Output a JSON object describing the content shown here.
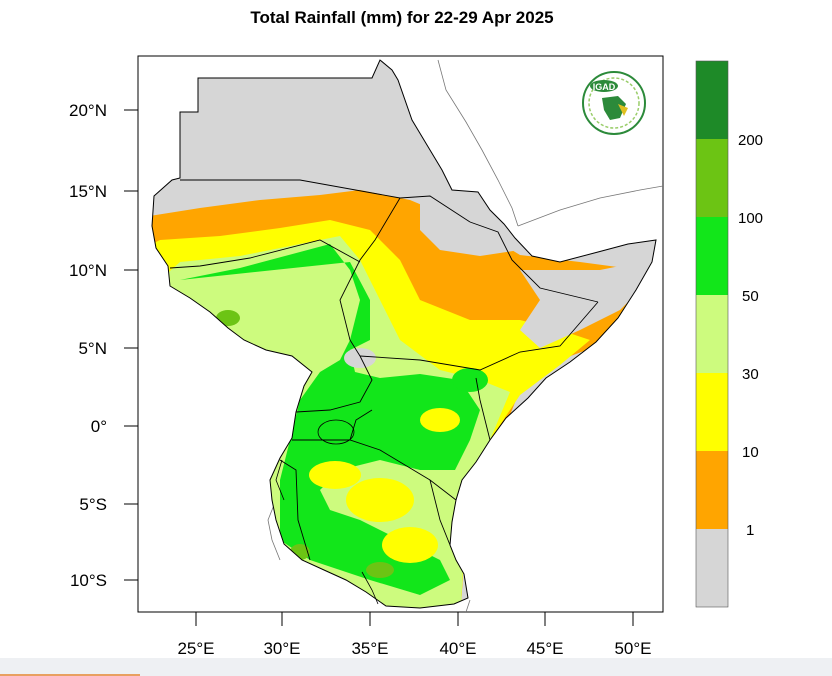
{
  "title": "Total Rainfall (mm) for 22-29 Apr 2025",
  "logo": {
    "text": "IGAD"
  },
  "axes": {
    "lat_labels": [
      "20°N",
      "15°N",
      "10°N",
      "5°N",
      "0°",
      "5°S",
      "10°S"
    ],
    "lon_labels": [
      "25°E",
      "30°E",
      "35°E",
      "40°E",
      "45°E",
      "50°E"
    ]
  },
  "legend": {
    "labels": [
      "200",
      "100",
      "50",
      "30",
      "10",
      "1"
    ],
    "colors": [
      "#1e8a28",
      "#6cc414",
      "#12e61a",
      "#cdfb7e",
      "#ffff00",
      "#ffa500",
      "#d6d6d6"
    ]
  },
  "colors": {
    "no_rain": "#d6d6d6",
    "light": "#ffa500",
    "moderate": "#ffff00",
    "wet": "#12e61a"
  }
}
